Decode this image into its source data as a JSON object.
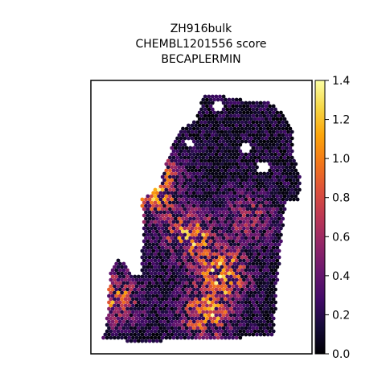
{
  "chart_data": {
    "type": "scatter",
    "subtype": "spatial-hexagonal-spot-map",
    "title_lines": [
      "ZH916bulk",
      "CHEMBL1201556 score",
      "BECAPLERMIN"
    ],
    "colormap": "inferno",
    "colorbar": {
      "range": [
        0.0,
        1.4
      ],
      "ticks": [
        0.0,
        0.2,
        0.4,
        0.6,
        0.8,
        1.0,
        1.2,
        1.4
      ],
      "tick_labels": [
        "0.0",
        "0.2",
        "0.4",
        "0.6",
        "0.8",
        "1.0",
        "1.2",
        "1.4"
      ]
    },
    "axes": {
      "visible": false,
      "frame": true
    },
    "hotspots": [
      {
        "x": 0.6,
        "y": 0.3,
        "value": 1.1
      },
      {
        "x": 0.45,
        "y": 0.43,
        "value": 1.0
      },
      {
        "x": 0.1,
        "y": 0.2,
        "value": 0.95
      },
      {
        "x": 0.52,
        "y": 0.15,
        "value": 1.05
      },
      {
        "x": 0.26,
        "y": 0.58,
        "value": 0.8
      },
      {
        "x": 0.3,
        "y": 0.65,
        "value": 0.75
      },
      {
        "x": 0.72,
        "y": 0.5,
        "value": 0.55
      }
    ],
    "background_level": 0.18,
    "value_range": [
      0.0,
      1.4
    ]
  }
}
